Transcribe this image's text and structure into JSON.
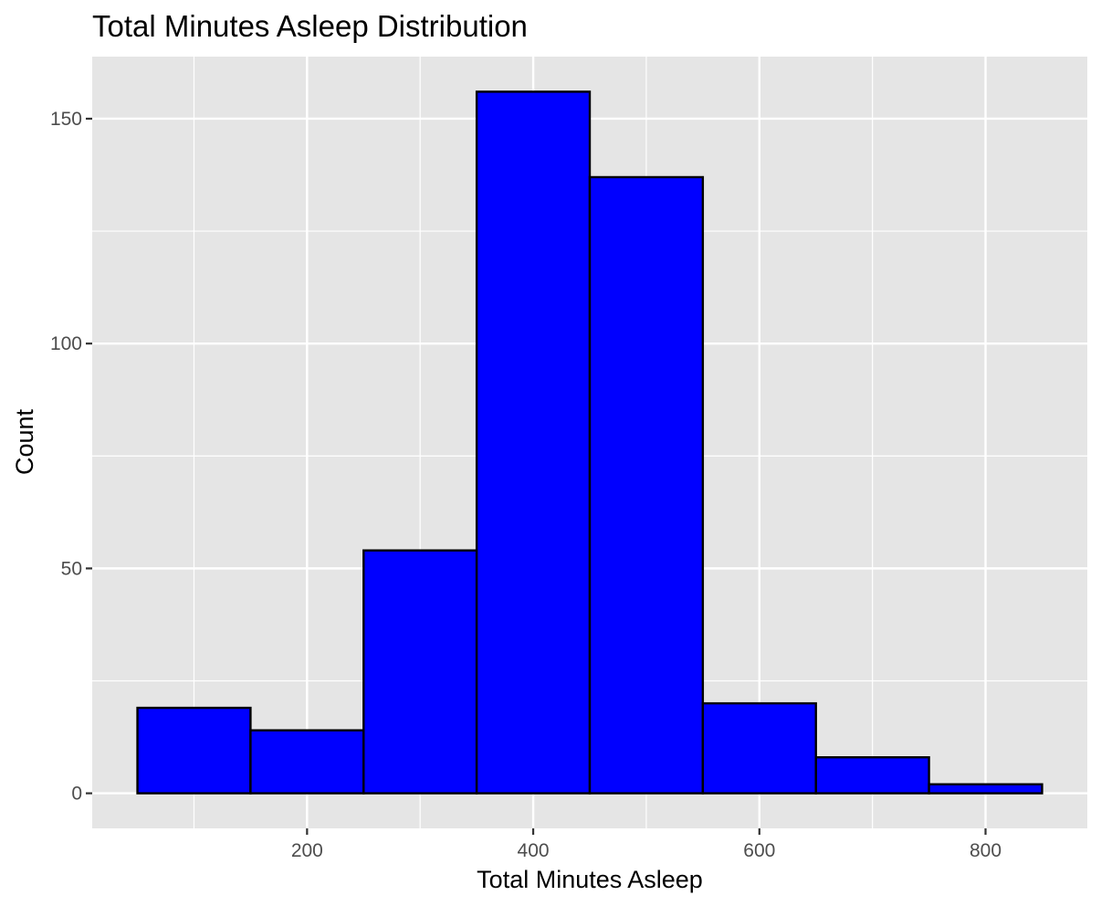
{
  "chart_data": {
    "type": "histogram",
    "title": "Total Minutes Asleep Distribution",
    "xlabel": "Total Minutes Asleep",
    "ylabel": "Count",
    "bins": [
      {
        "x0": 50,
        "x1": 150,
        "count": 19
      },
      {
        "x0": 150,
        "x1": 250,
        "count": 14
      },
      {
        "x0": 250,
        "x1": 350,
        "count": 54
      },
      {
        "x0": 350,
        "x1": 450,
        "count": 156
      },
      {
        "x0": 450,
        "x1": 550,
        "count": 137
      },
      {
        "x0": 550,
        "x1": 650,
        "count": 20
      },
      {
        "x0": 650,
        "x1": 750,
        "count": 8
      },
      {
        "x0": 750,
        "x1": 850,
        "count": 2
      }
    ],
    "x_ticks": [
      200,
      400,
      600,
      800
    ],
    "y_ticks": [
      0,
      50,
      100,
      150
    ],
    "xlim": [
      10,
      890
    ],
    "ylim": [
      -7.8,
      163.8
    ],
    "grid": true,
    "colors": {
      "bar_fill": "#0000ff",
      "bar_outline": "#000000",
      "panel_background": "#e5e5e5",
      "grid": "#ffffff"
    }
  }
}
